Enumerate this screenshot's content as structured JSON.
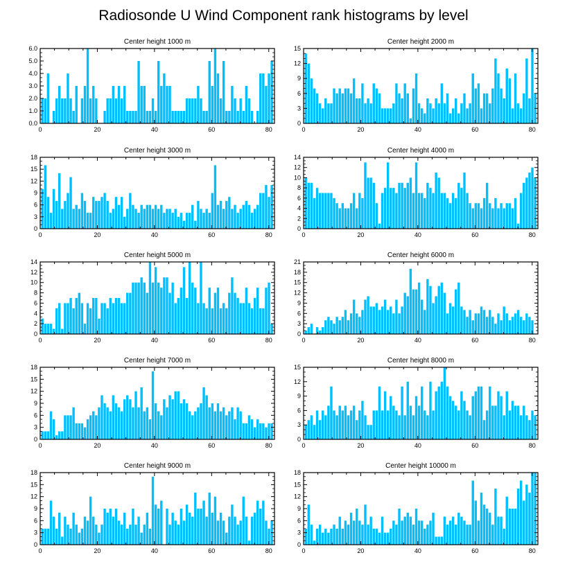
{
  "title": "Radiosonde U Wind Component rank histograms by level",
  "colors": {
    "bar": "#00bfff",
    "axis": "#000000"
  },
  "chart_data": [
    {
      "type": "bar",
      "title": "Center height 1000 m",
      "xlim": [
        0,
        82
      ],
      "ylim": [
        0,
        6
      ],
      "xticks": [
        0,
        20,
        40,
        60,
        80
      ],
      "yticks": [
        0,
        1,
        2,
        3,
        4,
        5,
        6
      ],
      "ytick_labels": [
        "0.0",
        "1.0",
        "2.0",
        "3.0",
        "4.0",
        "5.0",
        "6.0"
      ],
      "values": [
        2,
        2,
        4,
        0,
        1,
        2,
        3,
        2,
        2,
        4,
        2,
        1,
        3,
        0,
        2,
        3,
        6,
        2,
        3,
        2,
        0,
        0,
        1,
        2,
        2,
        3,
        2,
        3,
        2,
        3,
        1,
        1,
        1,
        1,
        5,
        3,
        3,
        1,
        1,
        2,
        1,
        5,
        3,
        4,
        3,
        3,
        1,
        1,
        1,
        1,
        1,
        2,
        2,
        2,
        2,
        3,
        2,
        1,
        1,
        5,
        3,
        6,
        4,
        2,
        5,
        1,
        1,
        3,
        2,
        1,
        2,
        1,
        3,
        2,
        1,
        0,
        1,
        4,
        4,
        3,
        4,
        5
      ]
    },
    {
      "type": "bar",
      "title": "Center height 2000 m",
      "xlim": [
        0,
        82
      ],
      "ylim": [
        0,
        15
      ],
      "xticks": [
        0,
        20,
        40,
        60,
        80
      ],
      "yticks": [
        0,
        3,
        6,
        9,
        12,
        15
      ],
      "ytick_labels": [
        "0",
        "3",
        "6",
        "9",
        "12",
        "15"
      ],
      "values": [
        14,
        12,
        9,
        7,
        6,
        4,
        3,
        5,
        4,
        4,
        7,
        6,
        7,
        6,
        7,
        7,
        6,
        9,
        5,
        5,
        8,
        4,
        5,
        4,
        8,
        7,
        6,
        3,
        3,
        3,
        3,
        4,
        8,
        6,
        5,
        8,
        6,
        1,
        7,
        10,
        4,
        3,
        2,
        5,
        4,
        3,
        5,
        4,
        8,
        4,
        6,
        2,
        3,
        5,
        2,
        4,
        6,
        3,
        4,
        10,
        7,
        8,
        3,
        6,
        6,
        4,
        7,
        13,
        10,
        7,
        5,
        11,
        9,
        3,
        10,
        4,
        3,
        6,
        13,
        5,
        15,
        6
      ]
    },
    {
      "type": "bar",
      "title": "Center height 3000 m",
      "xlim": [
        0,
        82
      ],
      "ylim": [
        0,
        18
      ],
      "xticks": [
        0,
        20,
        40,
        60,
        80
      ],
      "yticks": [
        0,
        3,
        6,
        9,
        12,
        15,
        18
      ],
      "ytick_labels": [
        "0",
        "3",
        "6",
        "9",
        "12",
        "15",
        "18"
      ],
      "values": [
        10,
        16,
        8,
        4,
        10,
        7,
        14,
        5,
        7,
        9,
        13,
        5,
        6,
        5,
        9,
        7,
        4,
        4,
        8,
        7,
        7,
        8,
        9,
        7,
        4,
        5,
        8,
        6,
        8,
        3,
        5,
        9,
        6,
        5,
        4,
        6,
        5,
        6,
        6,
        5,
        6,
        5,
        6,
        4,
        5,
        5,
        4,
        5,
        3,
        4,
        2,
        4,
        4,
        6,
        2,
        7,
        5,
        4,
        5,
        4,
        9,
        16,
        6,
        7,
        5,
        7,
        8,
        5,
        6,
        4,
        5,
        6,
        7,
        6,
        4,
        5,
        6,
        9,
        9,
        11,
        8,
        11
      ]
    },
    {
      "type": "bar",
      "title": "Center height 4000 m",
      "xlim": [
        0,
        82
      ],
      "ylim": [
        0,
        14
      ],
      "xticks": [
        0,
        20,
        40,
        60,
        80
      ],
      "yticks": [
        0,
        2,
        4,
        6,
        8,
        10,
        12,
        14
      ],
      "ytick_labels": [
        "0",
        "2",
        "4",
        "6",
        "8",
        "10",
        "12",
        "14"
      ],
      "values": [
        10,
        9,
        9,
        6,
        8,
        7,
        7,
        7,
        7,
        7,
        6,
        5,
        4,
        5,
        4,
        4,
        5,
        7,
        4,
        7,
        6,
        13,
        10,
        10,
        9,
        5,
        1,
        7,
        8,
        13,
        8,
        8,
        7,
        9,
        9,
        8,
        9,
        10,
        7,
        13,
        7,
        7,
        6,
        9,
        8,
        7,
        11,
        10,
        7,
        7,
        6,
        5,
        7,
        6,
        9,
        8,
        11,
        7,
        5,
        4,
        5,
        5,
        4,
        6,
        9,
        5,
        4,
        6,
        4,
        5,
        4,
        5,
        5,
        4,
        6,
        1,
        7,
        9,
        10,
        11,
        12,
        10
      ]
    },
    {
      "type": "bar",
      "title": "Center height 5000 m",
      "xlim": [
        0,
        82
      ],
      "ylim": [
        0,
        14
      ],
      "xticks": [
        0,
        20,
        40,
        60,
        80
      ],
      "yticks": [
        0,
        2,
        4,
        6,
        8,
        10,
        12,
        14
      ],
      "ytick_labels": [
        "0",
        "2",
        "4",
        "6",
        "8",
        "10",
        "12",
        "14"
      ],
      "values": [
        3,
        2,
        2,
        2,
        1,
        5,
        6,
        1,
        6,
        6,
        7,
        5,
        7,
        8,
        6,
        2,
        6,
        5,
        7,
        7,
        3,
        6,
        6,
        5,
        7,
        6,
        7,
        7,
        6,
        6,
        8,
        8,
        10,
        10,
        10,
        11,
        10,
        8,
        14,
        10,
        13,
        10,
        9,
        11,
        11,
        8,
        10,
        6,
        7,
        9,
        13,
        7,
        14,
        10,
        9,
        6,
        14,
        6,
        5,
        9,
        5,
        8,
        9,
        5,
        6,
        5,
        8,
        11,
        8,
        7,
        6,
        6,
        9,
        6,
        5,
        7,
        9,
        5,
        5,
        9,
        10,
        2
      ]
    },
    {
      "type": "bar",
      "title": "Center height 6000 m",
      "xlim": [
        0,
        82
      ],
      "ylim": [
        0,
        21
      ],
      "xticks": [
        0,
        20,
        40,
        60,
        80
      ],
      "yticks": [
        0,
        3,
        6,
        9,
        12,
        15,
        18,
        21
      ],
      "ytick_labels": [
        "0",
        "3",
        "6",
        "9",
        "12",
        "15",
        "18",
        "21"
      ],
      "values": [
        1,
        2,
        3,
        0,
        2,
        1,
        2,
        4,
        5,
        4,
        3,
        5,
        4,
        5,
        7,
        4,
        6,
        10,
        6,
        5,
        7,
        10,
        11,
        8,
        8,
        9,
        7,
        8,
        10,
        7,
        8,
        6,
        10,
        6,
        8,
        12,
        11,
        19,
        13,
        13,
        15,
        10,
        7,
        16,
        14,
        9,
        11,
        14,
        15,
        12,
        6,
        9,
        8,
        13,
        15,
        8,
        7,
        5,
        7,
        4,
        6,
        6,
        8,
        7,
        5,
        7,
        5,
        3,
        6,
        4,
        8,
        6,
        4,
        5,
        6,
        7,
        5,
        4,
        6,
        5,
        4,
        0
      ]
    },
    {
      "type": "bar",
      "title": "Center height 7000 m",
      "xlim": [
        0,
        82
      ],
      "ylim": [
        0,
        18
      ],
      "xticks": [
        0,
        20,
        40,
        60,
        80
      ],
      "yticks": [
        0,
        3,
        6,
        9,
        12,
        15,
        18
      ],
      "ytick_labels": [
        "0",
        "3",
        "6",
        "9",
        "12",
        "15",
        "18"
      ],
      "values": [
        2,
        2,
        2,
        7,
        5,
        1,
        2,
        2,
        6,
        6,
        6,
        8,
        4,
        4,
        4,
        3,
        5,
        6,
        7,
        6,
        8,
        11,
        9,
        8,
        7,
        11,
        9,
        8,
        7,
        10,
        11,
        10,
        8,
        12,
        8,
        13,
        7,
        8,
        5,
        17,
        9,
        7,
        6,
        10,
        8,
        11,
        10,
        12,
        12,
        9,
        10,
        9,
        7,
        6,
        7,
        8,
        9,
        13,
        11,
        8,
        9,
        7,
        9,
        7,
        8,
        6,
        7,
        8,
        5,
        8,
        7,
        4,
        4,
        6,
        5,
        3,
        5,
        4,
        4,
        3,
        4,
        4
      ]
    },
    {
      "type": "bar",
      "title": "Center height 8000 m",
      "xlim": [
        0,
        82
      ],
      "ylim": [
        0,
        15
      ],
      "xticks": [
        0,
        20,
        40,
        60,
        80
      ],
      "yticks": [
        0,
        3,
        6,
        9,
        12,
        15
      ],
      "ytick_labels": [
        "0",
        "3",
        "6",
        "9",
        "12",
        "15"
      ],
      "values": [
        3,
        4,
        5,
        3,
        6,
        4,
        6,
        5,
        7,
        11,
        6,
        5,
        7,
        6,
        7,
        5,
        6,
        7,
        4,
        6,
        8,
        5,
        3,
        3,
        6,
        6,
        11,
        6,
        10,
        6,
        9,
        7,
        6,
        5,
        11,
        5,
        12,
        7,
        5,
        9,
        7,
        11,
        6,
        5,
        12,
        6,
        10,
        11,
        12,
        15,
        11,
        9,
        8,
        7,
        6,
        10,
        8,
        6,
        5,
        9,
        10,
        11,
        11,
        4,
        6,
        11,
        7,
        7,
        10,
        9,
        5,
        10,
        6,
        8,
        7,
        7,
        5,
        7,
        5,
        4,
        6,
        5
      ]
    },
    {
      "type": "bar",
      "title": "Center height 9000 m",
      "xlim": [
        0,
        82
      ],
      "ylim": [
        0,
        18
      ],
      "xticks": [
        0,
        20,
        40,
        60,
        80
      ],
      "yticks": [
        0,
        3,
        6,
        9,
        12,
        15,
        18
      ],
      "ytick_labels": [
        "0",
        "3",
        "6",
        "9",
        "12",
        "15",
        "18"
      ],
      "values": [
        4,
        4,
        4,
        11,
        7,
        4,
        8,
        2,
        7,
        5,
        4,
        8,
        5,
        3,
        4,
        7,
        6,
        12,
        7,
        5,
        3,
        5,
        9,
        8,
        9,
        7,
        9,
        6,
        5,
        8,
        4,
        5,
        9,
        5,
        7,
        3,
        5,
        8,
        4,
        17,
        10,
        9,
        11,
        0,
        9,
        5,
        8,
        6,
        5,
        9,
        6,
        10,
        8,
        7,
        13,
        9,
        9,
        11,
        7,
        13,
        8,
        12,
        6,
        8,
        6,
        3,
        7,
        10,
        7,
        5,
        6,
        12,
        7,
        1,
        7,
        8,
        11,
        9,
        11,
        6,
        4,
        6
      ]
    },
    {
      "type": "bar",
      "title": "Center height 10000 m",
      "xlim": [
        0,
        82
      ],
      "ylim": [
        0,
        18
      ],
      "xticks": [
        0,
        20,
        40,
        60,
        80
      ],
      "yticks": [
        0,
        3,
        6,
        9,
        12,
        15,
        18
      ],
      "ytick_labels": [
        "0",
        "3",
        "6",
        "9",
        "12",
        "15",
        "18"
      ],
      "values": [
        4,
        10,
        5,
        1,
        4,
        5,
        3,
        4,
        3,
        4,
        5,
        4,
        7,
        4,
        6,
        5,
        8,
        6,
        9,
        6,
        5,
        10,
        5,
        7,
        4,
        4,
        3,
        7,
        3,
        3,
        4,
        6,
        5,
        9,
        6,
        7,
        8,
        7,
        5,
        9,
        6,
        6,
        4,
        5,
        6,
        8,
        2,
        2,
        2,
        7,
        5,
        6,
        7,
        5,
        8,
        7,
        6,
        5,
        5,
        16,
        11,
        6,
        13,
        10,
        9,
        8,
        5,
        14,
        7,
        7,
        4,
        12,
        9,
        9,
        9,
        14,
        16,
        11,
        15,
        13,
        18,
        18
      ]
    }
  ]
}
